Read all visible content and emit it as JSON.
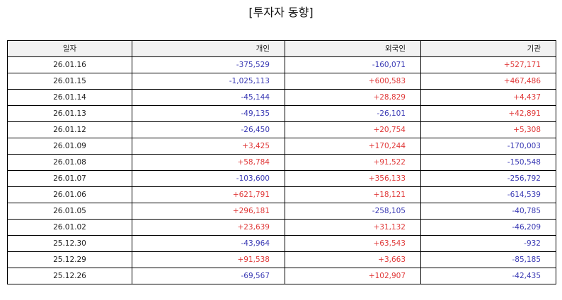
{
  "title": "[투자자 동향]",
  "columns": [
    "일자",
    "개인",
    "외국인",
    "기관"
  ],
  "colors": {
    "positive": "#e03a3a",
    "negative": "#3a3ab4"
  },
  "rows": [
    {
      "date": "26.01.16",
      "individual": "-375,529",
      "foreign": "-160,071",
      "institution": "+527,171"
    },
    {
      "date": "26.01.15",
      "individual": "-1,025,113",
      "foreign": "+600,583",
      "institution": "+467,486"
    },
    {
      "date": "26.01.14",
      "individual": "-45,144",
      "foreign": "+28,829",
      "institution": "+4,437"
    },
    {
      "date": "26.01.13",
      "individual": "-49,135",
      "foreign": "-26,101",
      "institution": "+42,891"
    },
    {
      "date": "26.01.12",
      "individual": "-26,450",
      "foreign": "+20,754",
      "institution": "+5,308"
    },
    {
      "date": "26.01.09",
      "individual": "+3,425",
      "foreign": "+170,244",
      "institution": "-170,003"
    },
    {
      "date": "26.01.08",
      "individual": "+58,784",
      "foreign": "+91,522",
      "institution": "-150,548"
    },
    {
      "date": "26.01.07",
      "individual": "-103,600",
      "foreign": "+356,133",
      "institution": "-256,792"
    },
    {
      "date": "26.01.06",
      "individual": "+621,791",
      "foreign": "+18,121",
      "institution": "-614,539"
    },
    {
      "date": "26.01.05",
      "individual": "+296,181",
      "foreign": "-258,105",
      "institution": "-40,785"
    },
    {
      "date": "26.01.02",
      "individual": "+23,639",
      "foreign": "+31,132",
      "institution": "-46,209"
    },
    {
      "date": "25.12.30",
      "individual": "-43,964",
      "foreign": "+63,543",
      "institution": "-932"
    },
    {
      "date": "25.12.29",
      "individual": "+91,538",
      "foreign": "+3,663",
      "institution": "-85,185"
    },
    {
      "date": "25.12.26",
      "individual": "-69,567",
      "foreign": "+102,907",
      "institution": "-42,435"
    }
  ]
}
